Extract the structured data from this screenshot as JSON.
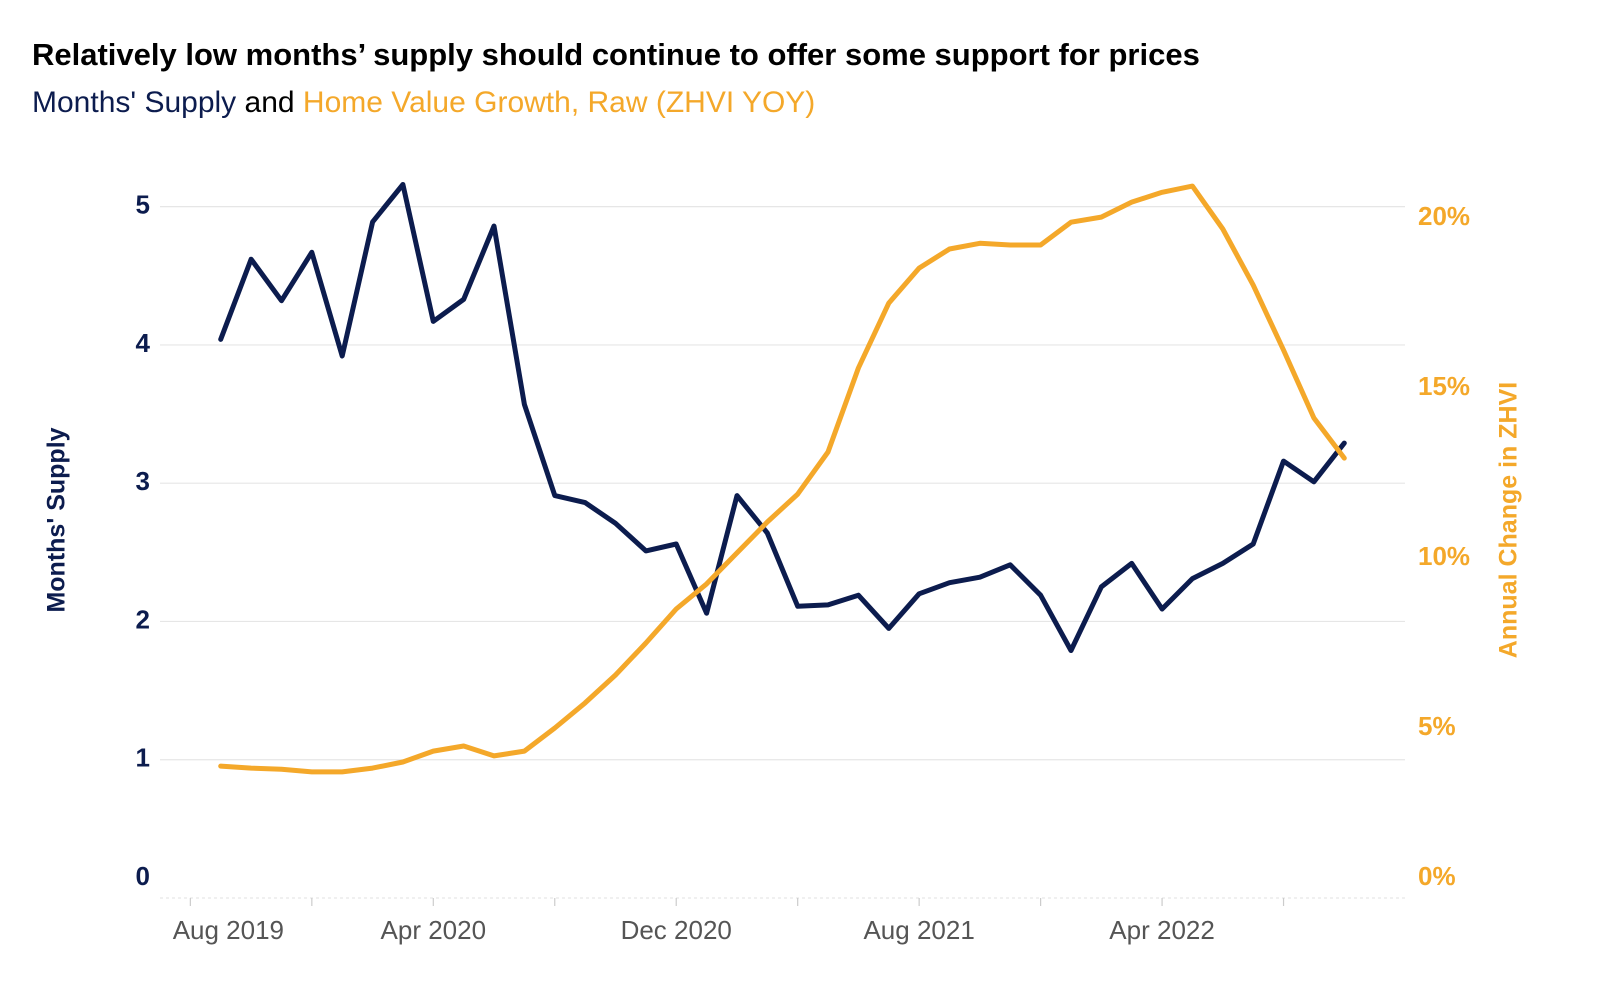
{
  "chart_data": {
    "type": "line",
    "title": "Relatively low months’ supply should continue to offer some support for prices",
    "subtitle_joiner": "and",
    "ylabel": "Months' Supply",
    "y2label": "Annual Change in ZHVI",
    "x": [
      "2019-09",
      "2019-10",
      "2019-11",
      "2019-12",
      "2020-01",
      "2020-02",
      "2020-03",
      "2020-04",
      "2020-05",
      "2020-06",
      "2020-07",
      "2020-08",
      "2020-09",
      "2020-10",
      "2020-11",
      "2020-12",
      "2021-01",
      "2021-02",
      "2021-03",
      "2021-04",
      "2021-05",
      "2021-06",
      "2021-07",
      "2021-08",
      "2021-09",
      "2021-10",
      "2021-11",
      "2021-12",
      "2022-01",
      "2022-02",
      "2022-03",
      "2022-04",
      "2022-05",
      "2022-06",
      "2022-07",
      "2022-08",
      "2022-09",
      "2022-10"
    ],
    "xlim": [
      "2019-07",
      "2022-12"
    ],
    "xticks": [
      {
        "value": "2019-08",
        "label": "Aug 2019"
      },
      {
        "value": "2020-04",
        "label": "Apr 2020"
      },
      {
        "value": "2020-12",
        "label": "Dec 2020"
      },
      {
        "value": "2021-08",
        "label": "Aug 2021"
      },
      {
        "value": "2022-04",
        "label": "Apr 2022"
      }
    ],
    "xminorticks": [
      "2019-12",
      "2020-08",
      "2021-04",
      "2021-12",
      "2022-08"
    ],
    "ylim": [
      0,
      5.2
    ],
    "yticks": [
      0,
      1,
      2,
      3,
      4,
      5
    ],
    "y2lim": [
      0,
      21.15
    ],
    "y2ticks": [
      {
        "value": 0,
        "label": "0%"
      },
      {
        "value": 5,
        "label": "5%"
      },
      {
        "value": 10,
        "label": "10%"
      },
      {
        "value": 15,
        "label": "15%"
      },
      {
        "value": 20,
        "label": "20%"
      }
    ],
    "grid": true,
    "series": [
      {
        "name": "Months' Supply",
        "color": "#0c1c4e",
        "axis": "y",
        "values": [
          4.04,
          4.62,
          4.32,
          4.67,
          3.92,
          4.89,
          5.16,
          4.17,
          4.33,
          4.86,
          3.57,
          2.91,
          2.86,
          2.71,
          2.51,
          2.56,
          2.06,
          2.91,
          2.64,
          2.11,
          2.12,
          2.19,
          1.95,
          2.2,
          2.28,
          2.32,
          2.41,
          2.19,
          1.79,
          2.25,
          2.42,
          2.09,
          2.31,
          2.42,
          2.56,
          3.16,
          3.01,
          3.29
        ]
      },
      {
        "name": "Home Value Growth, Raw (ZHVI YOY)",
        "color": "#f4a82a",
        "axis": "y2",
        "values": [
          3.88,
          3.82,
          3.79,
          3.71,
          3.71,
          3.82,
          4.0,
          4.32,
          4.47,
          4.18,
          4.32,
          5.0,
          5.74,
          6.56,
          7.5,
          8.5,
          9.24,
          10.15,
          11.06,
          11.88,
          13.12,
          15.59,
          17.5,
          18.53,
          19.09,
          19.26,
          19.21,
          19.21,
          19.88,
          20.03,
          20.47,
          20.76,
          20.94,
          19.68,
          18.03,
          16.12,
          14.12,
          12.94
        ]
      }
    ]
  }
}
